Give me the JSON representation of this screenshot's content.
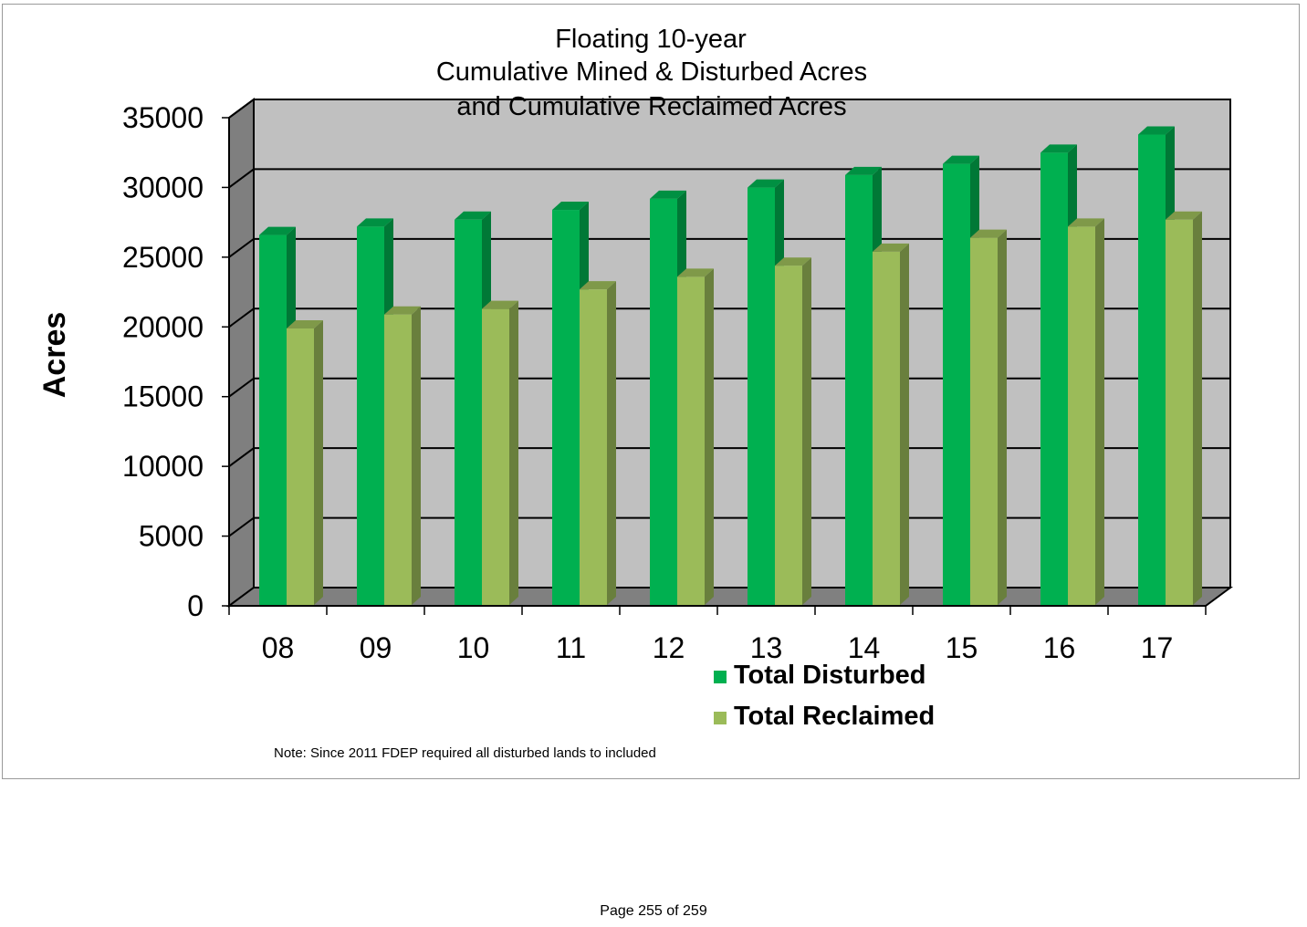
{
  "chart_data": {
    "type": "bar",
    "title": [
      "Floating 10-year",
      "Cumulative Mined & Disturbed Acres",
      "and Cumulative Reclaimed Acres"
    ],
    "ylabel": "Acres",
    "xlabel": "",
    "categories": [
      "08",
      "09",
      "10",
      "11",
      "12",
      "13",
      "14",
      "15",
      "16",
      "17"
    ],
    "ylim": [
      0,
      35000
    ],
    "yticks": [
      0,
      5000,
      10000,
      15000,
      20000,
      25000,
      30000,
      35000
    ],
    "grid": true,
    "legend_position": "bottom-center",
    "series": [
      {
        "name": "Total Disturbed",
        "color": "#00b050",
        "values": [
          26000,
          26600,
          27100,
          27800,
          28600,
          29400,
          30300,
          31100,
          31900,
          33200
        ]
      },
      {
        "name": "Total Reclaimed",
        "color": "#9bbb59",
        "values": [
          19300,
          20300,
          20700,
          22100,
          23000,
          23800,
          24800,
          25800,
          26600,
          27100
        ]
      }
    ],
    "note": "Note: Since 2011 FDEP required all disturbed lands to included"
  },
  "footer": {
    "page_label": "Page 255 of 259"
  },
  "colors": {
    "plot_back": "#c0c0c0",
    "plot_side": "#7f7f7f",
    "plot_floor": "#808080",
    "gridline": "#000000"
  }
}
